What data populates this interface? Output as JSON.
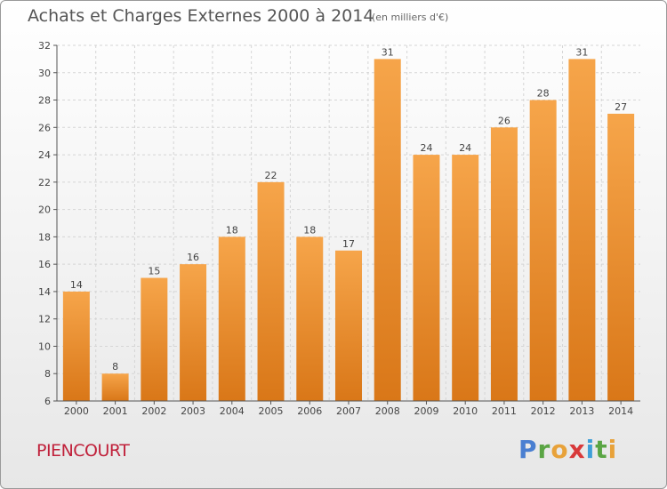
{
  "header": {
    "title": "Achats et Charges Externes 2000 à 2014",
    "unit": "(en milliers d'€)"
  },
  "footer": {
    "town": "PIENCOURT",
    "brand_letters": [
      "P",
      "r",
      "o",
      "x",
      "i",
      "t",
      "i"
    ],
    "brand_colors": [
      "#4a7fd1",
      "#5aa544",
      "#e8a23a",
      "#d8393a",
      "#3f9fd8",
      "#5aa544",
      "#e8a23a"
    ]
  },
  "colors": {
    "bar_top": "#f6a54a",
    "bar_bottom": "#d97718",
    "axis": "#555555",
    "grid": "#d5d5d5"
  },
  "chart_data": {
    "type": "bar",
    "title": "Achats et Charges Externes 2000 à 2014",
    "subtitle": "(en milliers d'€)",
    "categories": [
      "2000",
      "2001",
      "2002",
      "2003",
      "2004",
      "2005",
      "2006",
      "2007",
      "2008",
      "2009",
      "2010",
      "2011",
      "2012",
      "2013",
      "2014"
    ],
    "values": [
      14,
      8,
      15,
      16,
      18,
      22,
      18,
      17,
      31,
      24,
      24,
      26,
      28,
      31,
      27
    ],
    "ylim": [
      6,
      32
    ],
    "yticks": [
      6,
      8,
      10,
      12,
      14,
      16,
      18,
      20,
      22,
      24,
      26,
      28,
      30,
      32
    ],
    "grid": true,
    "xlabel": "",
    "ylabel": ""
  }
}
